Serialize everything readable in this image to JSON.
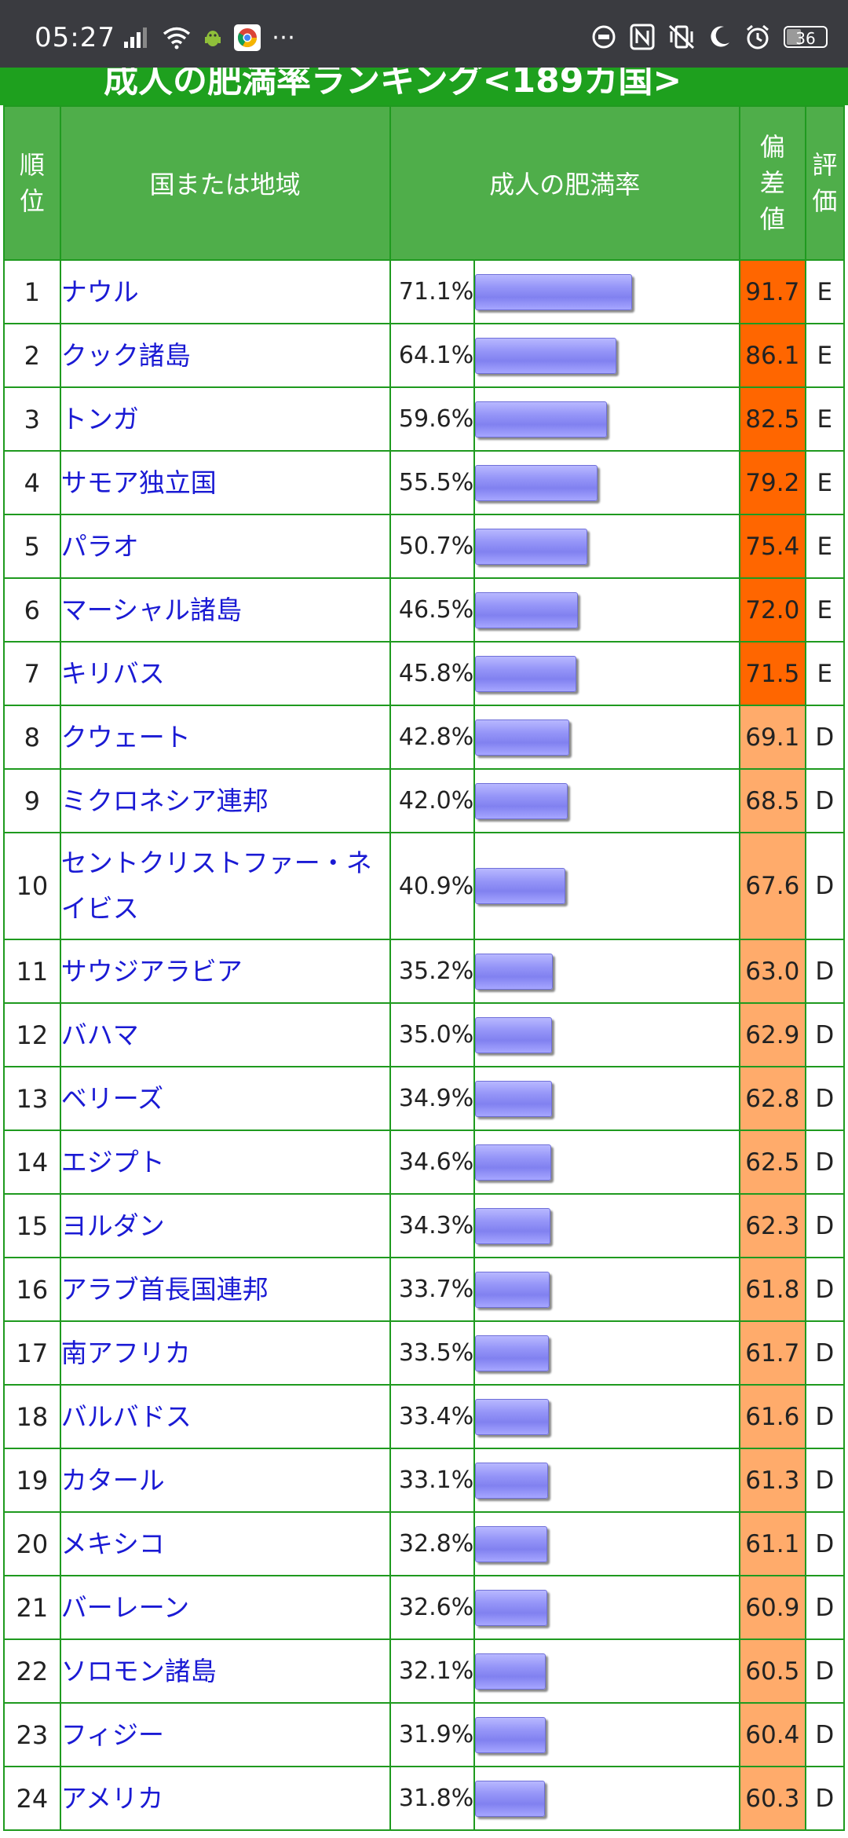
{
  "status": {
    "time": "05:27",
    "more": "⋯",
    "battery": "36"
  },
  "page": {
    "title": "成人の肥満率ランキング<189カ国>"
  },
  "table": {
    "headers": {
      "rank": "順位",
      "country": "国または地域",
      "rate": "成人の肥満率",
      "deviation": "偏差値",
      "grade": "評価"
    },
    "colors": {
      "deviation_high": "#ff6600",
      "deviation_mid": "#ffab6b",
      "header": "#4fae4a",
      "border": "#1f9a1f"
    },
    "rows": [
      {
        "rank": "1",
        "country": "ナウル",
        "rate": "71.1%",
        "value": 71.1,
        "deviation": "91.7",
        "grade": "E"
      },
      {
        "rank": "2",
        "country": "クック諸島",
        "rate": "64.1%",
        "value": 64.1,
        "deviation": "86.1",
        "grade": "E"
      },
      {
        "rank": "3",
        "country": "トンガ",
        "rate": "59.6%",
        "value": 59.6,
        "deviation": "82.5",
        "grade": "E"
      },
      {
        "rank": "4",
        "country": "サモア独立国",
        "rate": "55.5%",
        "value": 55.5,
        "deviation": "79.2",
        "grade": "E"
      },
      {
        "rank": "5",
        "country": "パラオ",
        "rate": "50.7%",
        "value": 50.7,
        "deviation": "75.4",
        "grade": "E"
      },
      {
        "rank": "6",
        "country": "マーシャル諸島",
        "rate": "46.5%",
        "value": 46.5,
        "deviation": "72.0",
        "grade": "E"
      },
      {
        "rank": "7",
        "country": "キリバス",
        "rate": "45.8%",
        "value": 45.8,
        "deviation": "71.5",
        "grade": "E"
      },
      {
        "rank": "8",
        "country": "クウェート",
        "rate": "42.8%",
        "value": 42.8,
        "deviation": "69.1",
        "grade": "D"
      },
      {
        "rank": "9",
        "country": "ミクロネシア連邦",
        "rate": "42.0%",
        "value": 42.0,
        "deviation": "68.5",
        "grade": "D"
      },
      {
        "rank": "10",
        "country": "セントクリストファー・ネイビス",
        "rate": "40.9%",
        "value": 40.9,
        "deviation": "67.6",
        "grade": "D"
      },
      {
        "rank": "11",
        "country": "サウジアラビア",
        "rate": "35.2%",
        "value": 35.2,
        "deviation": "63.0",
        "grade": "D"
      },
      {
        "rank": "12",
        "country": "バハマ",
        "rate": "35.0%",
        "value": 35.0,
        "deviation": "62.9",
        "grade": "D"
      },
      {
        "rank": "13",
        "country": "ベリーズ",
        "rate": "34.9%",
        "value": 34.9,
        "deviation": "62.8",
        "grade": "D"
      },
      {
        "rank": "14",
        "country": "エジプト",
        "rate": "34.6%",
        "value": 34.6,
        "deviation": "62.5",
        "grade": "D"
      },
      {
        "rank": "15",
        "country": "ヨルダン",
        "rate": "34.3%",
        "value": 34.3,
        "deviation": "62.3",
        "grade": "D"
      },
      {
        "rank": "16",
        "country": "アラブ首長国連邦",
        "rate": "33.7%",
        "value": 33.7,
        "deviation": "61.8",
        "grade": "D"
      },
      {
        "rank": "17",
        "country": "南アフリカ",
        "rate": "33.5%",
        "value": 33.5,
        "deviation": "61.7",
        "grade": "D"
      },
      {
        "rank": "18",
        "country": "バルバドス",
        "rate": "33.4%",
        "value": 33.4,
        "deviation": "61.6",
        "grade": "D"
      },
      {
        "rank": "19",
        "country": "カタール",
        "rate": "33.1%",
        "value": 33.1,
        "deviation": "61.3",
        "grade": "D"
      },
      {
        "rank": "20",
        "country": "メキシコ",
        "rate": "32.8%",
        "value": 32.8,
        "deviation": "61.1",
        "grade": "D"
      },
      {
        "rank": "21",
        "country": "バーレーン",
        "rate": "32.6%",
        "value": 32.6,
        "deviation": "60.9",
        "grade": "D"
      },
      {
        "rank": "22",
        "country": "ソロモン諸島",
        "rate": "32.1%",
        "value": 32.1,
        "deviation": "60.5",
        "grade": "D"
      },
      {
        "rank": "23",
        "country": "フィジー",
        "rate": "31.9%",
        "value": 31.9,
        "deviation": "60.4",
        "grade": "D"
      },
      {
        "rank": "24",
        "country": "アメリカ",
        "rate": "31.8%",
        "value": 31.8,
        "deviation": "60.3",
        "grade": "D"
      }
    ]
  }
}
